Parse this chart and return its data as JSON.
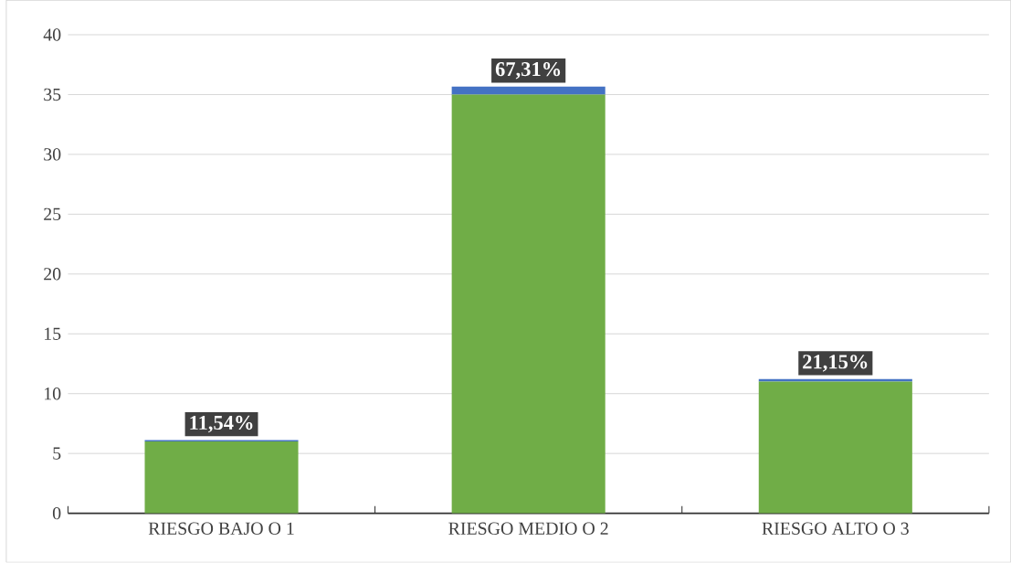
{
  "chart_data": {
    "type": "bar",
    "stacked": true,
    "categories": [
      "RIESGO BAJO O 1",
      "RIESGO MEDIO O 2",
      "RIESGO ALTO O 3"
    ],
    "series": [
      {
        "color": "#70ad47",
        "values": [
          6,
          35,
          11
        ]
      },
      {
        "color": "#4472c4",
        "values": [
          0.1154,
          0.6731,
          0.2115
        ],
        "value_labels": [
          "11,54%",
          "67,31%",
          "21,15%"
        ]
      }
    ],
    "ylim": [
      0,
      40
    ],
    "yticks": [
      0,
      5,
      10,
      15,
      20,
      25,
      30,
      35,
      40
    ],
    "grid": "y"
  }
}
